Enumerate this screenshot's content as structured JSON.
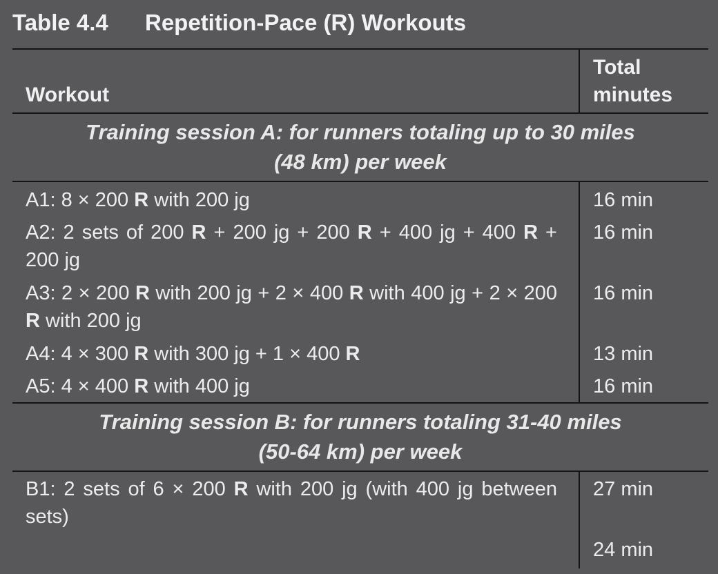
{
  "table": {
    "number": "Table 4.4",
    "title": "Repetition-Pace (R) Workouts",
    "col_workout": "Workout",
    "col_minutes_l1": "Total",
    "col_minutes_l2": "minutes"
  },
  "session_a": {
    "heading_l1": "Training session A: for runners totaling up to 30 miles",
    "heading_l2": "(48 km) per week",
    "rows": [
      {
        "segments": [
          "A1: 8 × 200 ",
          "R",
          " with 200 jg"
        ],
        "minutes": "16 min"
      },
      {
        "segments": [
          "A2: 2 sets of 200 ",
          "R",
          " + 200 jg + 200 ",
          "R",
          " + 400 jg + 400 ",
          "R",
          " + 200 jg"
        ],
        "minutes": "16 min"
      },
      {
        "segments": [
          "A3: 2 × 200 ",
          "R",
          " with 200 jg + 2 × 400 ",
          "R",
          " with 400 jg + 2 × 200 ",
          "R",
          " with 200 jg"
        ],
        "minutes": "16 min"
      },
      {
        "segments": [
          "A4: 4 × 300 ",
          "R",
          " with 300 jg + 1 × 400 ",
          "R"
        ],
        "minutes": "13 min"
      },
      {
        "segments": [
          "A5: 4 × 400 ",
          "R",
          " with 400 jg"
        ],
        "minutes": "16 min"
      }
    ]
  },
  "session_b": {
    "heading_l1": "Training session B: for runners totaling 31-40 miles",
    "heading_l2": "(50-64 km) per week",
    "rows": [
      {
        "segments": [
          "B1: 2 sets of 6 × 200 ",
          "R",
          " with 200 jg (with 400 jg between sets)"
        ],
        "minutes": "27 min"
      },
      {
        "segments": [],
        "minutes": "24 min"
      }
    ]
  }
}
